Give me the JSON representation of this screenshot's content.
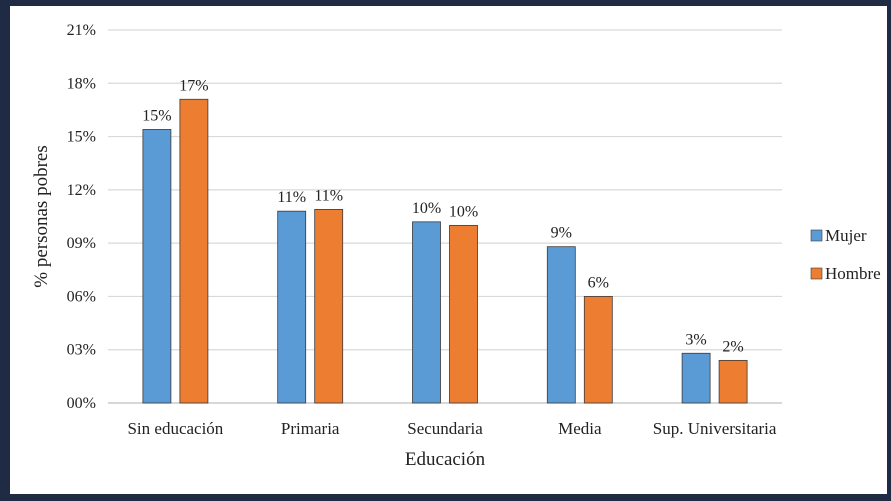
{
  "chart_data": {
    "type": "bar",
    "title": "",
    "xlabel": "Educación",
    "ylabel": "% personas pobres",
    "ylim": [
      0,
      0.21
    ],
    "yticks": [
      0,
      0.03,
      0.06,
      0.09,
      0.12,
      0.15,
      0.18,
      0.21
    ],
    "ytick_labels": [
      "00%",
      "03%",
      "06%",
      "09%",
      "12%",
      "15%",
      "18%",
      "21%"
    ],
    "grid": true,
    "legend_position": "right",
    "categories": [
      "Sin educación",
      "Primaria",
      "Secundaria",
      "Media",
      "Sup. Universitaria"
    ],
    "series": [
      {
        "name": "Mujer",
        "color": "#5b9bd5",
        "values": [
          0.154,
          0.108,
          0.102,
          0.088,
          0.028
        ],
        "labels": [
          "15%",
          "11%",
          "10%",
          "9%",
          "3%"
        ]
      },
      {
        "name": "Hombre",
        "color": "#ed7d31",
        "values": [
          0.171,
          0.109,
          0.1,
          0.06,
          0.024
        ],
        "labels": [
          "17%",
          "11%",
          "10%",
          "6%",
          "2%"
        ]
      }
    ]
  }
}
